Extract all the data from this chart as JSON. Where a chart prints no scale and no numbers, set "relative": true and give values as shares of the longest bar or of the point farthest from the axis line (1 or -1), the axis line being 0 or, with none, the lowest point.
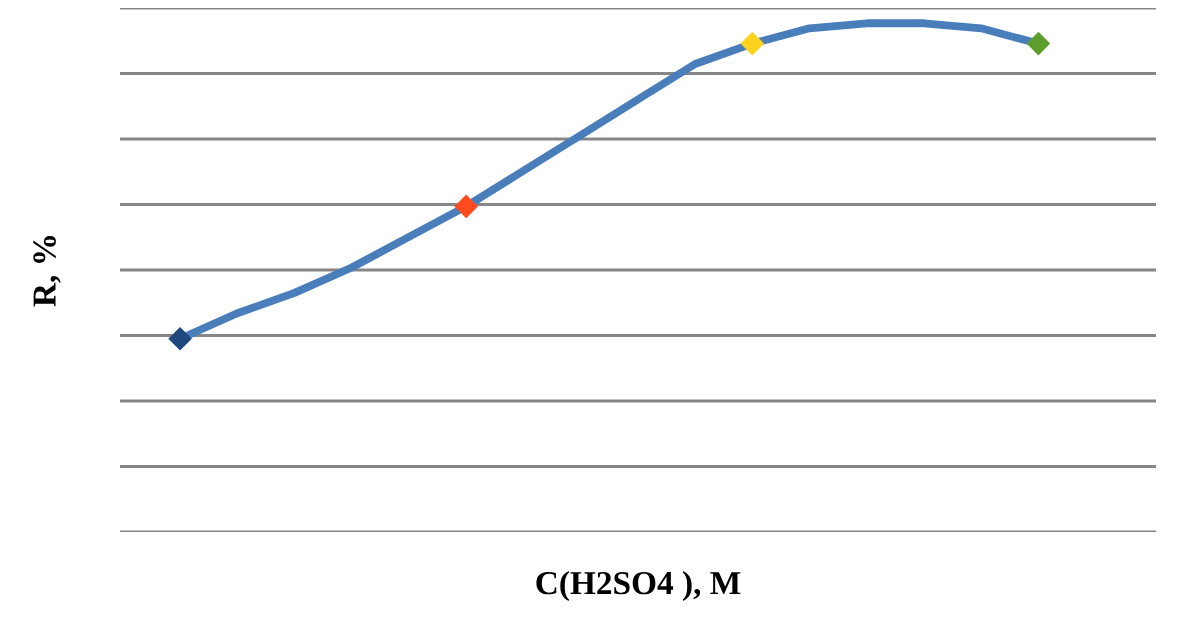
{
  "chart_data": {
    "type": "line",
    "xlabel": "C(H2SO4 ), M",
    "ylabel": "R, %",
    "relative": true,
    "categories": [
      null,
      null,
      null,
      null,
      null,
      null,
      null,
      null,
      null,
      null,
      null,
      null,
      null,
      null,
      null,
      null
    ],
    "series": [
      {
        "color": "#4a7ebb",
        "colors": [
          "#1f497d",
          null,
          null,
          null,
          null,
          "#ff4b1e",
          null,
          null,
          null,
          null,
          "#ffd21e",
          null,
          null,
          null,
          null,
          "#5b9e2c"
        ],
        "values": [
          0.38,
          0.43,
          0.47,
          0.52,
          0.58,
          0.64,
          0.71,
          0.78,
          0.85,
          0.92,
          0.96,
          0.99,
          1,
          1,
          0.99,
          0.96
        ]
      }
    ],
    "line_style": "solid",
    "grid": "y",
    "legend": false
  }
}
